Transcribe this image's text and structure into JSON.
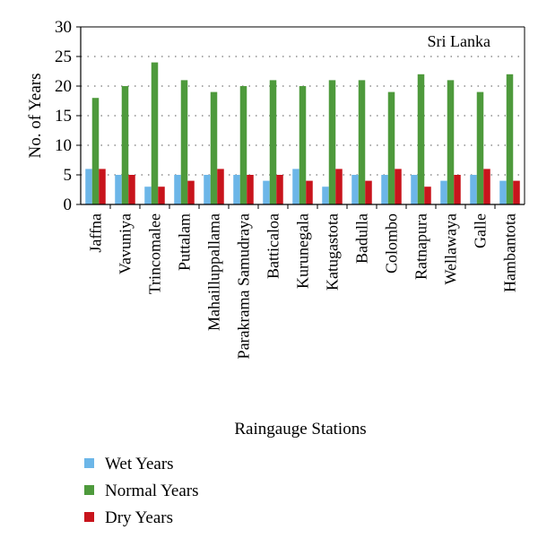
{
  "chart_data": {
    "type": "bar",
    "annotation": "Sri Lanka",
    "xlabel": "Raingauge Stations",
    "ylabel": "No. of Years",
    "ylim": [
      0,
      30
    ],
    "yticks": [
      0,
      5,
      10,
      15,
      20,
      25,
      30
    ],
    "grid": "horizontal dotted",
    "legend_position": "bottom-left",
    "categories": [
      "Jaffna",
      "Vavuniya",
      "Trincomalee",
      "Puttalam",
      "Mahailluppallama",
      "Parakrama Samudraya",
      "Batticaloa",
      "Kurunegala",
      "Katugastota",
      "Badulla",
      "Colombo",
      "Ratnapura",
      "Wellawaya",
      "Galle",
      "Hambantota"
    ],
    "series": [
      {
        "name": "Wet Years",
        "color": "#6CB6E8",
        "values": [
          6,
          5,
          3,
          5,
          5,
          5,
          4,
          6,
          3,
          5,
          5,
          5,
          4,
          5,
          4
        ]
      },
      {
        "name": "Normal Years",
        "color": "#4E9A3C",
        "values": [
          18,
          20,
          24,
          21,
          19,
          20,
          21,
          20,
          21,
          21,
          19,
          22,
          21,
          19,
          22
        ]
      },
      {
        "name": "Dry Years",
        "color": "#C8141C",
        "values": [
          6,
          5,
          3,
          4,
          6,
          5,
          5,
          4,
          6,
          4,
          6,
          3,
          5,
          6,
          4
        ]
      }
    ]
  }
}
